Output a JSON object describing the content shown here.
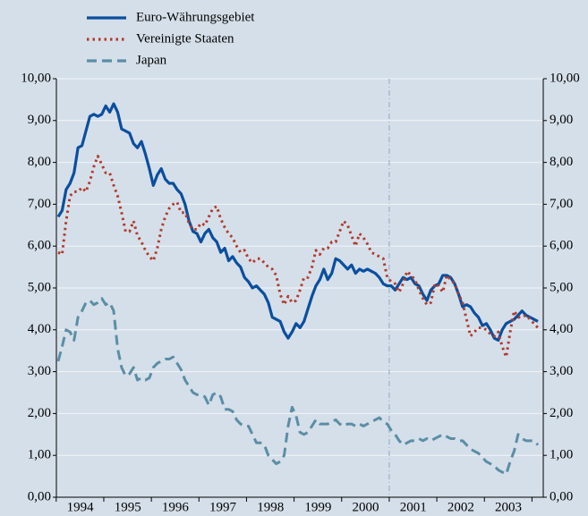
{
  "chart_data": {
    "type": "line",
    "categories": [
      null,
      null,
      null,
      null,
      null,
      null,
      "1994",
      null,
      null,
      null,
      null,
      null,
      null,
      null,
      null,
      null,
      null,
      null,
      "1995",
      null,
      null,
      null,
      null,
      null,
      null,
      null,
      null,
      null,
      null,
      null,
      "1996",
      null,
      null,
      null,
      null,
      null,
      null,
      null,
      null,
      null,
      null,
      null,
      "1997",
      null,
      null,
      null,
      null,
      null,
      null,
      null,
      null,
      null,
      null,
      null,
      "1998",
      null,
      null,
      null,
      null,
      null,
      null,
      null,
      null,
      null,
      null,
      null,
      "1999",
      null,
      null,
      null,
      null,
      null,
      null,
      null,
      null,
      null,
      null,
      null,
      "2000",
      null,
      null,
      null,
      null,
      null,
      null,
      null,
      null,
      null,
      null,
      null,
      "2001",
      null,
      null,
      null,
      null,
      null,
      null,
      null,
      null,
      null,
      null,
      null,
      "2002",
      null,
      null,
      null,
      null,
      null,
      null,
      null,
      null,
      null,
      null,
      null,
      "2003",
      null,
      null,
      null,
      null,
      null,
      null,
      null
    ],
    "series": [
      {
        "name": "Euro-Währungsgebiet",
        "color": "#0b4f9e",
        "style": "solid",
        "values": [
          6.7,
          6.85,
          7.35,
          7.5,
          7.75,
          8.35,
          8.4,
          8.75,
          9.1,
          9.15,
          9.1,
          9.15,
          9.35,
          9.2,
          9.4,
          9.2,
          8.8,
          8.75,
          8.7,
          8.45,
          8.35,
          8.5,
          8.2,
          7.85,
          7.45,
          7.7,
          7.85,
          7.6,
          7.5,
          7.5,
          7.35,
          7.25,
          7.0,
          6.6,
          6.35,
          6.3,
          6.1,
          6.3,
          6.4,
          6.2,
          6.1,
          5.85,
          5.95,
          5.65,
          5.75,
          5.6,
          5.5,
          5.25,
          5.15,
          5.0,
          5.05,
          4.95,
          4.85,
          4.65,
          4.3,
          4.25,
          4.2,
          3.95,
          3.8,
          3.95,
          4.15,
          4.05,
          4.2,
          4.5,
          4.8,
          5.05,
          5.2,
          5.45,
          5.2,
          5.35,
          5.7,
          5.65,
          5.55,
          5.45,
          5.55,
          5.35,
          5.45,
          5.4,
          5.45,
          5.4,
          5.35,
          5.25,
          5.1,
          5.05,
          5.05,
          4.95,
          5.1,
          5.25,
          5.2,
          5.25,
          5.1,
          5.05,
          4.85,
          4.7,
          4.95,
          5.05,
          5.1,
          5.3,
          5.3,
          5.25,
          5.1,
          4.85,
          4.55,
          4.6,
          4.55,
          4.4,
          4.3,
          4.1,
          4.15,
          4.0,
          3.8,
          3.75,
          4.0,
          4.15,
          4.2,
          4.25,
          4.35,
          4.45,
          4.35,
          4.3,
          4.25,
          4.2
        ]
      },
      {
        "name": "Vereinigte Staaten",
        "color": "#b23a2c",
        "style": "dotted",
        "values": [
          5.85,
          5.8,
          6.6,
          7.2,
          7.3,
          7.3,
          7.4,
          7.3,
          7.55,
          7.9,
          8.15,
          7.95,
          7.75,
          7.75,
          7.45,
          7.2,
          6.8,
          6.35,
          6.35,
          6.6,
          6.25,
          6.1,
          5.9,
          5.75,
          5.65,
          5.95,
          6.4,
          6.7,
          6.9,
          7.0,
          7.05,
          6.8,
          6.8,
          6.55,
          6.4,
          6.4,
          6.55,
          6.5,
          6.7,
          6.9,
          6.95,
          6.65,
          6.45,
          6.3,
          6.2,
          6.0,
          5.85,
          5.9,
          5.7,
          5.6,
          5.7,
          5.7,
          5.6,
          5.5,
          5.45,
          5.3,
          4.85,
          4.6,
          4.8,
          4.65,
          4.7,
          4.95,
          5.25,
          5.25,
          5.5,
          5.9,
          5.8,
          5.95,
          5.95,
          6.1,
          6.1,
          6.35,
          6.6,
          6.5,
          6.25,
          6.0,
          6.3,
          6.2,
          6.05,
          5.85,
          5.8,
          5.75,
          5.7,
          5.25,
          5.15,
          5.1,
          4.9,
          5.1,
          5.4,
          5.3,
          5.2,
          4.95,
          4.75,
          4.6,
          4.65,
          5.1,
          5.05,
          4.9,
          5.3,
          5.2,
          5.1,
          4.85,
          4.65,
          4.25,
          3.85,
          3.95,
          4.05,
          4.05,
          4.0,
          3.9,
          3.85,
          3.95,
          3.6,
          3.35,
          3.95,
          4.45,
          4.3,
          4.3,
          4.35,
          4.25,
          4.15,
          4.05
        ]
      },
      {
        "name": "Japan",
        "color": "#5b8ea6",
        "style": "dashed",
        "values": [
          3.25,
          3.6,
          4.0,
          3.95,
          3.75,
          4.3,
          4.45,
          4.65,
          4.7,
          4.6,
          4.65,
          4.75,
          4.6,
          4.65,
          4.45,
          3.55,
          3.1,
          2.9,
          2.95,
          3.1,
          2.8,
          2.85,
          2.8,
          2.85,
          3.1,
          3.2,
          3.25,
          3.3,
          3.3,
          3.35,
          3.2,
          3.05,
          2.8,
          2.65,
          2.5,
          2.45,
          2.45,
          2.4,
          2.2,
          2.45,
          2.5,
          2.4,
          2.1,
          2.1,
          2.05,
          1.85,
          1.75,
          1.7,
          1.7,
          1.5,
          1.3,
          1.3,
          1.25,
          1.0,
          0.9,
          0.8,
          0.85,
          1.0,
          1.7,
          2.15,
          1.95,
          1.55,
          1.5,
          1.55,
          1.7,
          1.85,
          1.75,
          1.75,
          1.75,
          1.8,
          1.85,
          1.75,
          1.7,
          1.75,
          1.75,
          1.7,
          1.75,
          1.7,
          1.75,
          1.8,
          1.85,
          1.9,
          1.8,
          1.75,
          1.6,
          1.5,
          1.35,
          1.25,
          1.3,
          1.35,
          1.35,
          1.4,
          1.35,
          1.4,
          1.35,
          1.4,
          1.45,
          1.5,
          1.45,
          1.4,
          1.4,
          1.35,
          1.35,
          1.25,
          1.15,
          1.1,
          1.05,
          0.95,
          0.85,
          0.8,
          0.75,
          0.65,
          0.6,
          0.55,
          0.85,
          1.1,
          1.5,
          1.4,
          1.35,
          1.35,
          1.35,
          1.25
        ]
      }
    ],
    "ylim": [
      0,
      10
    ],
    "yticks": [
      {
        "value": 0,
        "label": "0,00"
      },
      {
        "value": 1,
        "label": "1,00"
      },
      {
        "value": 2,
        "label": "2,00"
      },
      {
        "value": 3,
        "label": "3,00"
      },
      {
        "value": 4,
        "label": "4,00"
      },
      {
        "value": 5,
        "label": "5,00"
      },
      {
        "value": 6,
        "label": "6,00"
      },
      {
        "value": 7,
        "label": "7,00"
      },
      {
        "value": 8,
        "label": "8,00"
      },
      {
        "value": 9,
        "label": "9,00"
      },
      {
        "value": 10,
        "label": "10,00"
      }
    ],
    "grid": true
  }
}
